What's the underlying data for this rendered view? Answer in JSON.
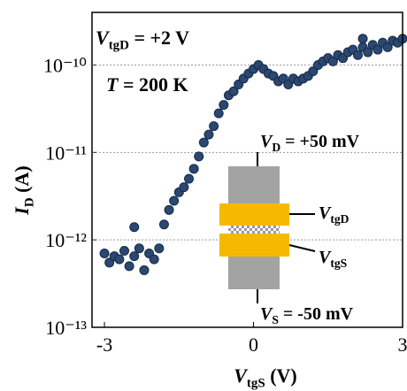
{
  "chart_data": {
    "type": "scatter",
    "xlabel": {
      "symbol": "V",
      "sub": "tgS",
      "rest": " (V)"
    },
    "ylabel": {
      "symbol": "I",
      "sub": "D",
      "rest": " (A)"
    },
    "log_y": true,
    "grid": true,
    "color": "#2b4870",
    "xlim": [
      -3.25,
      3
    ],
    "xticks": [
      -3,
      0,
      3
    ],
    "ylim": [
      1e-13,
      4e-10
    ],
    "yticks": [
      {
        "value": 1e-13,
        "label": "10⁻¹³"
      },
      {
        "value": 1e-12,
        "label": "10⁻¹²"
      },
      {
        "value": 1e-11,
        "label": "10⁻¹¹"
      },
      {
        "value": 1e-10,
        "label": "10⁻¹⁰"
      }
    ],
    "annotations": [
      {
        "symbol": "V",
        "sub": "tgD",
        "rest": " = +2 V"
      },
      {
        "symbol": "T",
        "rest": " = 200 K"
      },
      {
        "symbol": "V",
        "sub": "D",
        "rest": " = +50 mV"
      },
      {
        "symbol": "V",
        "sub": "tgD"
      },
      {
        "symbol": "V",
        "sub": "tgS"
      },
      {
        "symbol": "V",
        "sub": "S",
        "rest": " = -50 mV"
      }
    ],
    "x": [
      -3.0,
      -2.9,
      -2.8,
      -2.7,
      -2.6,
      -2.5,
      -2.4,
      -2.3,
      -2.2,
      -2.1,
      -2.0,
      -1.9,
      -1.8,
      -1.7,
      -1.6,
      -1.5,
      -1.4,
      -1.3,
      -1.2,
      -1.1,
      -1.0,
      -0.9,
      -0.8,
      -0.7,
      -0.6,
      -0.5,
      -0.4,
      -0.3,
      -0.2,
      -0.1,
      0.0,
      0.1,
      0.2,
      0.3,
      0.4,
      0.5,
      0.6,
      0.7,
      0.8,
      0.9,
      1.0,
      1.1,
      1.2,
      1.3,
      1.4,
      1.5,
      1.6,
      1.7,
      1.8,
      1.9,
      2.0,
      2.1,
      2.2,
      2.3,
      2.4,
      2.5,
      2.6,
      2.7,
      2.8,
      2.9,
      3.0,
      -2.4,
      2.2
    ],
    "values": [
      7e-13,
      5.5e-13,
      6.5e-13,
      6e-13,
      7.5e-13,
      5e-13,
      6.5e-13,
      8e-13,
      4.5e-13,
      7e-13,
      6e-13,
      8e-13,
      1.5e-12,
      2.2e-12,
      2.8e-12,
      3.5e-12,
      4e-12,
      5e-12,
      6.5e-12,
      9e-12,
      1.3e-11,
      1.6e-11,
      2e-11,
      2.8e-11,
      3.5e-11,
      4.5e-11,
      5e-11,
      6e-11,
      7e-11,
      8e-11,
      9e-11,
      1e-10,
      9e-11,
      8e-11,
      7.5e-11,
      6.5e-11,
      7e-11,
      6e-11,
      7e-11,
      6.5e-11,
      7e-11,
      7.5e-11,
      8.5e-11,
      1e-10,
      1.1e-10,
      1.2e-10,
      1.1e-10,
      1.3e-10,
      1.2e-10,
      1.4e-10,
      1.5e-10,
      1.3e-10,
      1.6e-10,
      1.4e-10,
      1.7e-10,
      1.5e-10,
      1.8e-10,
      1.6e-10,
      1.9e-10,
      1.8e-10,
      2e-10,
      1.4e-12,
      2e-10
    ]
  }
}
